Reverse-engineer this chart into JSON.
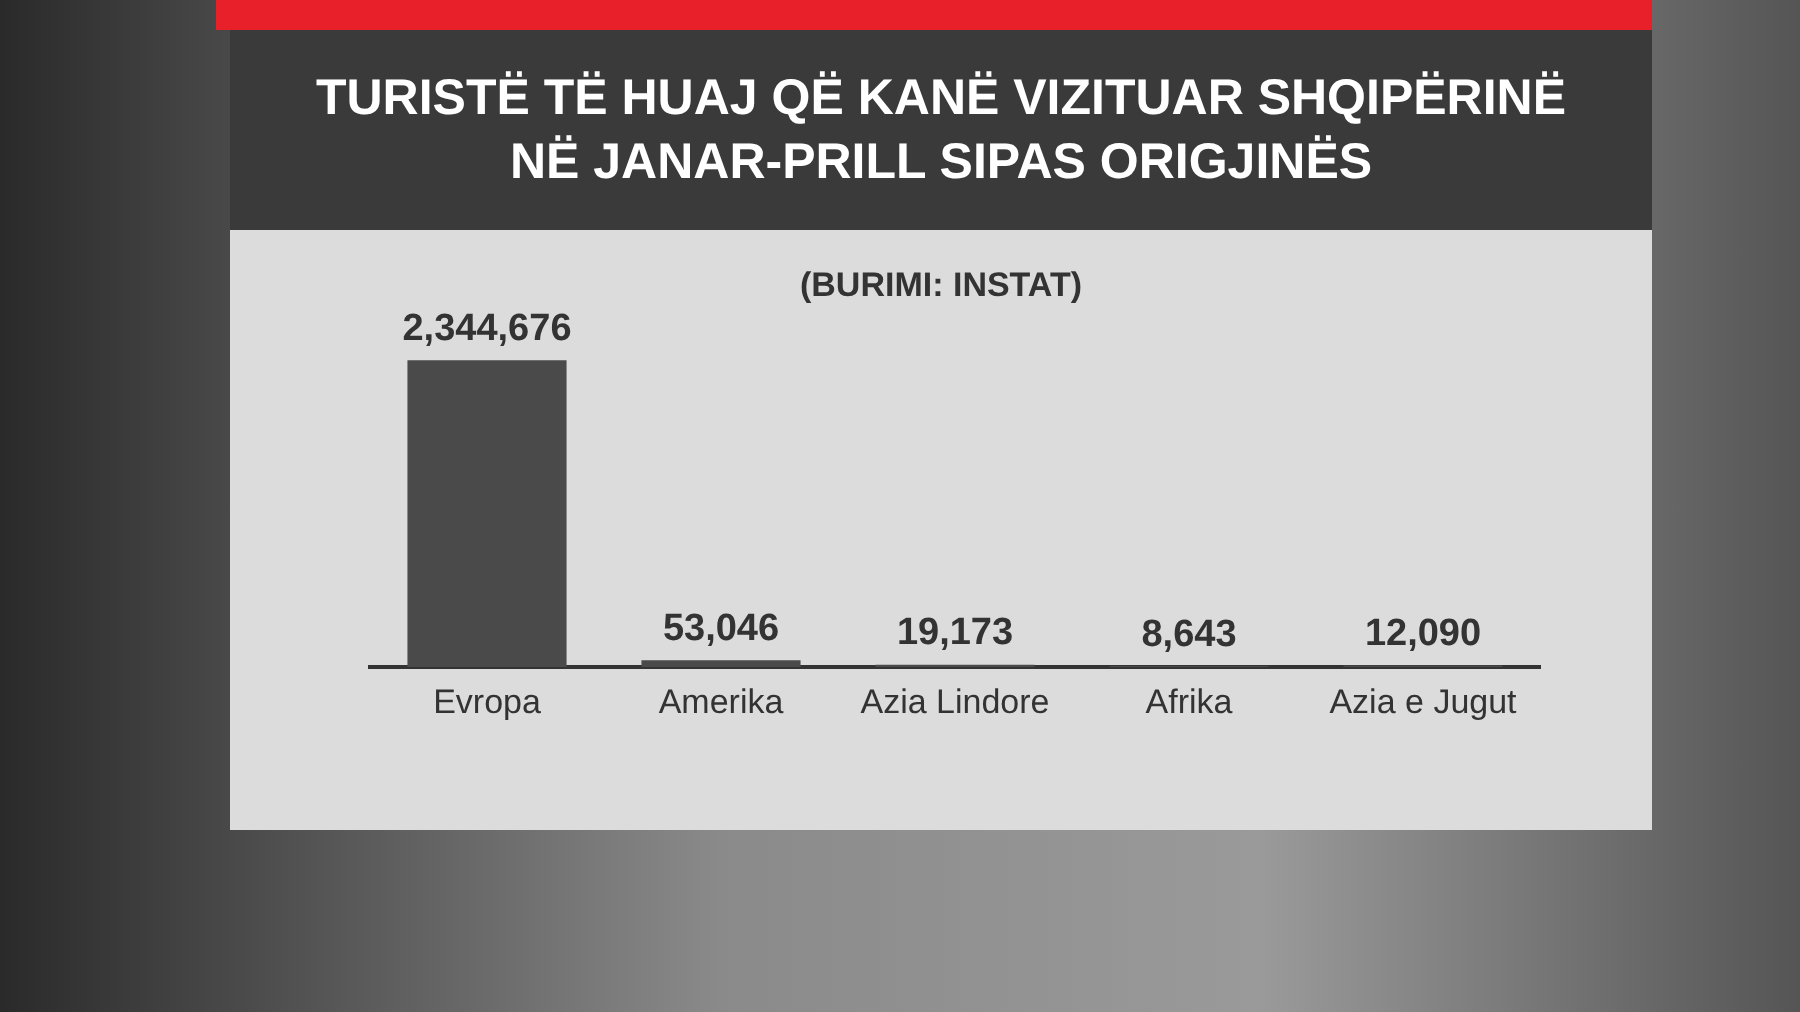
{
  "chart_data": {
    "type": "bar",
    "title": "TURISTË TË HUAJ QË KANË VIZITUAR SHQIPËRINË NË JANAR-PRILL SIPAS ORIGJINËS",
    "annotations": [
      "(BURIMI: INSTAT)"
    ],
    "categories": [
      "Evropa",
      "Amerika",
      "Azia Lindore",
      "Afrika",
      "Azia e Jugut"
    ],
    "values": [
      2344676,
      53046,
      19173,
      8643,
      12090
    ],
    "value_labels": [
      "2,344,676",
      "53,046",
      "19,173",
      "8,643",
      "12,090"
    ],
    "color": "#4a4a4a",
    "grid": false,
    "legend": false
  }
}
